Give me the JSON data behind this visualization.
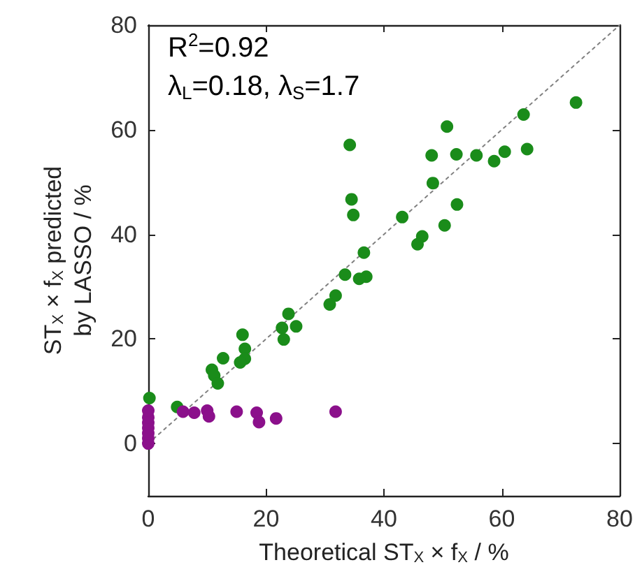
{
  "chart_data": {
    "type": "scatter",
    "xlabel": "Theoretical ST$_{X}$ × f$_{X}$ / %",
    "ylabel": "ST$_{X}$ × f$_{X}$ predicted\nby LASSO / %",
    "annotations": [
      "R$^{2}$=0.92",
      "λ$_{L}$=0.18, λ$_{S}$=1.7"
    ],
    "xlim": [
      0,
      80
    ],
    "ylim": [
      -10,
      80
    ],
    "xticks": [
      0,
      20,
      40,
      60,
      80
    ],
    "yticks": [
      0,
      20,
      40,
      60,
      80
    ],
    "marker": "circle",
    "series": [
      {
        "type": "line",
        "color": "#808080",
        "line_style": "dotted",
        "marker": "none",
        "x": [
          0,
          80
        ],
        "values": [
          0,
          80
        ]
      },
      {
        "color": "#1a8c1a",
        "x": [
          72.6,
          63.7,
          64.3,
          60.5,
          58.7,
          55.7,
          52.3,
          50.7,
          48.1,
          48.3,
          52.4,
          50.3,
          34.2,
          34.5,
          34.8,
          43.1,
          46.5,
          45.7,
          36.6,
          37,
          33.4,
          35.8,
          31.8,
          30.8,
          23.8,
          25.1,
          22.7,
          23,
          16,
          16.4,
          16.4,
          15.6,
          12.7,
          10.8,
          11.2,
          11.8,
          4.9,
          0.2
        ],
        "values": [
          65.2,
          62.9,
          56.3,
          55.8,
          54,
          55.1,
          55.3,
          60.6,
          55.1,
          49.8,
          45.7,
          41.7,
          57.1,
          46.7,
          43.7,
          43.3,
          39.6,
          38.1,
          36.5,
          31.9,
          32.3,
          31.5,
          28.3,
          26.6,
          24.8,
          22.4,
          22.1,
          19.9,
          20.8,
          18.1,
          16.2,
          15.5,
          16.3,
          14.1,
          13,
          11.5,
          7,
          8.7
        ]
      },
      {
        "color": "#8b108b",
        "x": [
          0,
          0,
          0,
          0,
          0,
          0,
          0,
          5.9,
          7.8,
          10,
          10.3,
          15,
          18.4,
          18.8,
          21.7,
          31.8
        ],
        "values": [
          0,
          1,
          2,
          3,
          4,
          5,
          6.3,
          6.1,
          5.9,
          6.3,
          5.2,
          6.1,
          5.9,
          4.1,
          4.8,
          6.1
        ]
      }
    ]
  }
}
